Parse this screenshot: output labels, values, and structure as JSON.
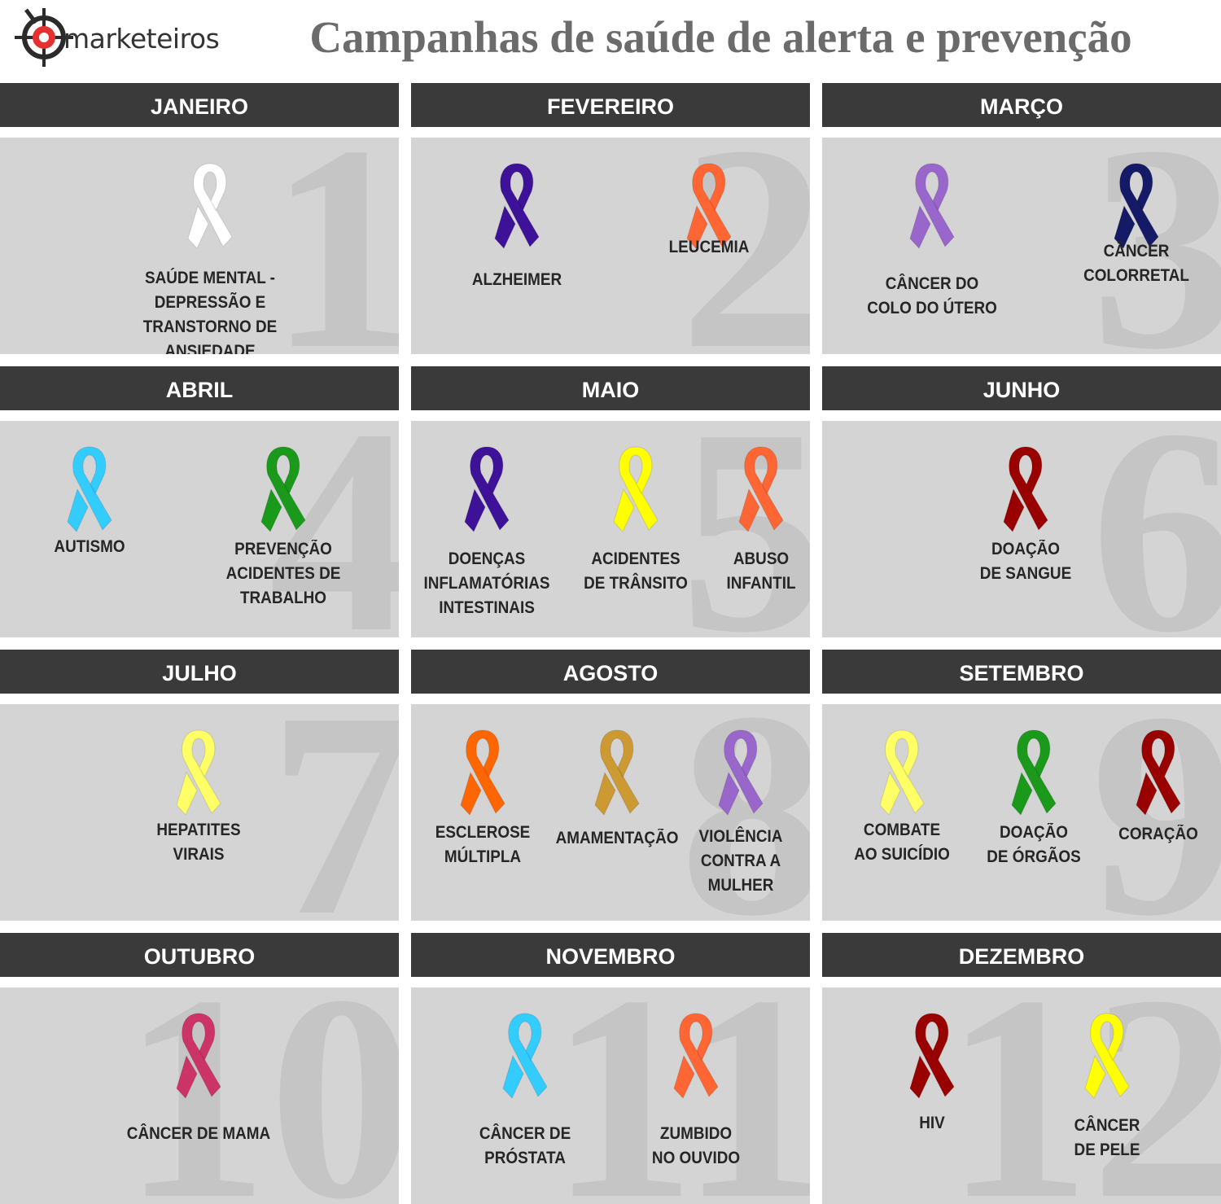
{
  "header": {
    "logo_text": "marketeiros",
    "title": "Campanhas de saúde de alerta e prevenção"
  },
  "months": [
    {
      "name": "JANEIRO",
      "number": "1",
      "campaigns": [
        {
          "label": "SAÚDE MENTAL - DEPRESSÃO E\nTRANSTORNO DE ANSIEDADE",
          "color": "#ffffff"
        }
      ]
    },
    {
      "name": "FEVEREIRO",
      "number": "2",
      "campaigns": [
        {
          "label": "ALZHEIMER",
          "color": "#3d1299"
        },
        {
          "label": "LEUCEMIA",
          "color": "#ff6633"
        }
      ]
    },
    {
      "name": "MARÇO",
      "number": "3",
      "campaigns": [
        {
          "label": "CÂNCER DO\nCOLO DO ÚTERO",
          "color": "#9966cc"
        },
        {
          "label": "CÂNCER\nCOLORRETAL",
          "color": "#141a66"
        }
      ]
    },
    {
      "name": "ABRIL",
      "number": "4",
      "campaigns": [
        {
          "label": "AUTISMO",
          "color": "#33ccff"
        },
        {
          "label": "PREVENÇÃO\nACIDENTES DE\nTRABALHO",
          "color": "#1a991a"
        }
      ]
    },
    {
      "name": "MAIO",
      "number": "5",
      "campaigns": [
        {
          "label": "DOENÇAS\nINFLAMATÓRIAS\nINTESTINAIS",
          "color": "#3d1299"
        },
        {
          "label": "ACIDENTES\nDE TRÂNSITO",
          "color": "#ffff00"
        },
        {
          "label": "ABUSO\nINFANTIL",
          "color": "#ff6633"
        }
      ]
    },
    {
      "name": "JUNHO",
      "number": "6",
      "campaigns": [
        {
          "label": "DOAÇÃO\nDE SANGUE",
          "color": "#990000"
        }
      ]
    },
    {
      "name": "JULHO",
      "number": "7",
      "campaigns": [
        {
          "label": "HEPATITES\nVIRAIS",
          "color": "#ffff66"
        }
      ]
    },
    {
      "name": "AGOSTO",
      "number": "8",
      "campaigns": [
        {
          "label": "ESCLEROSE\nMÚLTIPLA",
          "color": "#ff6600"
        },
        {
          "label": "AMAMENTAÇÃO",
          "color": "#cc9933"
        },
        {
          "label": "VIOLÊNCIA\nCONTRA A\nMULHER",
          "color": "#9966cc"
        }
      ]
    },
    {
      "name": "SETEMBRO",
      "number": "9",
      "campaigns": [
        {
          "label": "COMBATE\nAO SUICÍDIO",
          "color": "#ffff66"
        },
        {
          "label": "DOAÇÃO\nDE ÓRGÃOS",
          "color": "#1a991a"
        },
        {
          "label": "CORAÇÃO",
          "color": "#990000"
        }
      ]
    },
    {
      "name": "OUTUBRO",
      "number": "10",
      "campaigns": [
        {
          "label": "CÂNCER DE MAMA",
          "color": "#cc3366"
        }
      ]
    },
    {
      "name": "NOVEMBRO",
      "number": "11",
      "campaigns": [
        {
          "label": "CÂNCER DE\nPRÓSTATA",
          "color": "#33ccff"
        },
        {
          "label": "ZUMBIDO\nNO OUVIDO",
          "color": "#ff6633"
        }
      ]
    },
    {
      "name": "DEZEMBRO",
      "number": "12",
      "campaigns": [
        {
          "label": "HIV",
          "color": "#990000"
        },
        {
          "label": "CÂNCER\nDE PELE",
          "color": "#ffff00"
        }
      ]
    }
  ]
}
